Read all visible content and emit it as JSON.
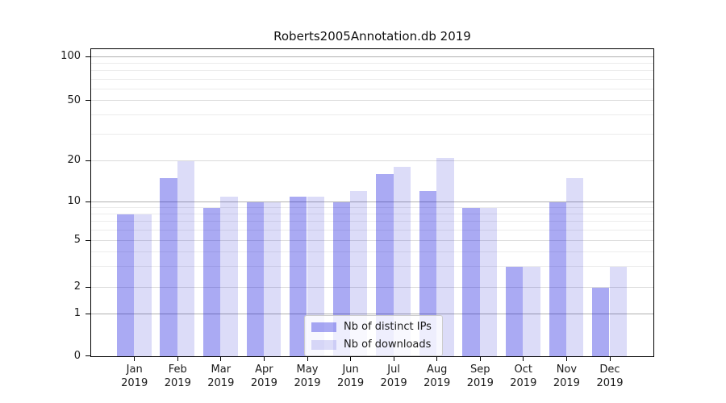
{
  "chart_data": {
    "type": "bar",
    "title": "Roberts2005Annotation.db 2019",
    "categories": [
      "Jan",
      "Feb",
      "Mar",
      "Apr",
      "May",
      "Jun",
      "Jul",
      "Aug",
      "Sep",
      "Oct",
      "Nov",
      "Dec"
    ],
    "x_year_label": "2019",
    "series": [
      {
        "key": "distinct-ips",
        "name": "Nb of distinct IPs",
        "color": "rgba(0,0,218,0.335)",
        "solid": "#aaaaf2",
        "values": [
          8,
          15,
          9,
          10,
          11,
          10,
          16,
          12,
          9,
          3,
          10,
          2
        ]
      },
      {
        "key": "downloads",
        "name": "Nb of downloads",
        "color": "rgba(0,0,204,0.137)",
        "solid": "#dcdcf8",
        "values": [
          8,
          20,
          11,
          10,
          11,
          12,
          18,
          21,
          9,
          3,
          15,
          3
        ]
      }
    ],
    "yticks": [
      0,
      1,
      2,
      5,
      10,
      20,
      50,
      100
    ],
    "yscale": "symlog",
    "ylim": [
      0,
      110
    ],
    "grid": {
      "major": [
        1,
        10,
        100
      ],
      "mid": [
        2,
        5,
        20,
        50
      ],
      "minor": [
        3,
        4,
        6,
        7,
        8,
        9,
        30,
        40,
        60,
        70,
        80,
        90
      ]
    },
    "legend_position": "lower center"
  },
  "colors": {
    "spine": "#000000",
    "grid_major": "#b0b0b0",
    "grid_mid": "#dbdbdb",
    "grid_minor": "#ececec",
    "text": "#1a1a1a",
    "legend_border": "#cccccc",
    "legend_bg": "rgba(255,255,255,0.8)"
  }
}
